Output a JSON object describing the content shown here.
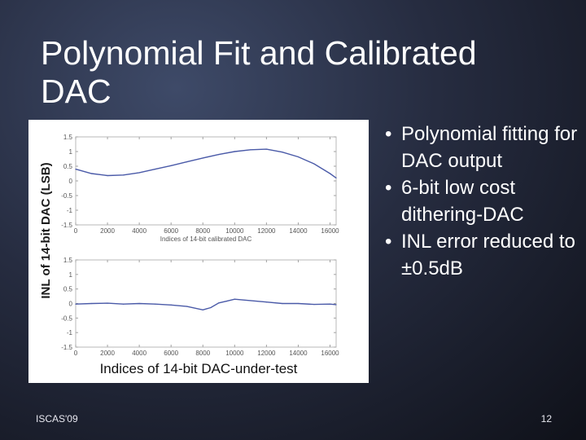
{
  "slide": {
    "title": "Polynomial Fit and Calibrated DAC",
    "bullets": [
      "Polynomial fitting for DAC output",
      "6-bit low cost dithering-DAC",
      "INL error reduced to ±0.5dB"
    ],
    "footer_left": "ISCAS'09",
    "page_number": "12"
  },
  "chart_data": [
    {
      "type": "line",
      "title": "",
      "xlabel": "Indices of 14-bit calibrated DAC",
      "ylabel": "INL of 14-bit DAC (LSB)",
      "xlim": [
        0,
        16384
      ],
      "ylim": [
        -1.5,
        1.5
      ],
      "xticks": [
        0,
        2000,
        4000,
        6000,
        8000,
        10000,
        12000,
        14000,
        16000
      ],
      "yticks": [
        -1.5,
        -1,
        -0.5,
        0,
        0.5,
        1,
        1.5
      ],
      "color": "#4a5aa8",
      "series": [
        {
          "x": [
            0,
            1000,
            2000,
            3000,
            4000,
            5000,
            6000,
            7000,
            8000,
            9000,
            10000,
            11000,
            12000,
            13000,
            14000,
            15000,
            16000,
            16384
          ],
          "y": [
            0.4,
            0.25,
            0.18,
            0.2,
            0.28,
            0.4,
            0.52,
            0.65,
            0.78,
            0.9,
            1.0,
            1.06,
            1.08,
            0.98,
            0.82,
            0.58,
            0.25,
            0.1
          ]
        }
      ]
    },
    {
      "type": "line",
      "title": "",
      "xlabel": "Indices of 14-bit DAC-under-test",
      "ylabel": "INL of 14-bit DAC (LSB)",
      "xlim": [
        0,
        16384
      ],
      "ylim": [
        -1.5,
        1.5
      ],
      "xticks": [
        0,
        2000,
        4000,
        6000,
        8000,
        10000,
        12000,
        14000,
        16000
      ],
      "yticks": [
        -1.5,
        -1,
        -0.5,
        0,
        0.5,
        1,
        1.5
      ],
      "color": "#4a5aa8",
      "series": [
        {
          "x": [
            0,
            1000,
            2000,
            3000,
            4000,
            5000,
            6000,
            7000,
            8000,
            8500,
            9000,
            9500,
            10000,
            11000,
            12000,
            13000,
            14000,
            15000,
            16000,
            16384
          ],
          "y": [
            -0.02,
            0.0,
            0.01,
            -0.02,
            0.0,
            -0.02,
            -0.05,
            -0.1,
            -0.22,
            -0.14,
            0.02,
            0.08,
            0.15,
            0.1,
            0.05,
            0.0,
            0.0,
            -0.03,
            -0.02,
            -0.04
          ]
        }
      ]
    }
  ]
}
